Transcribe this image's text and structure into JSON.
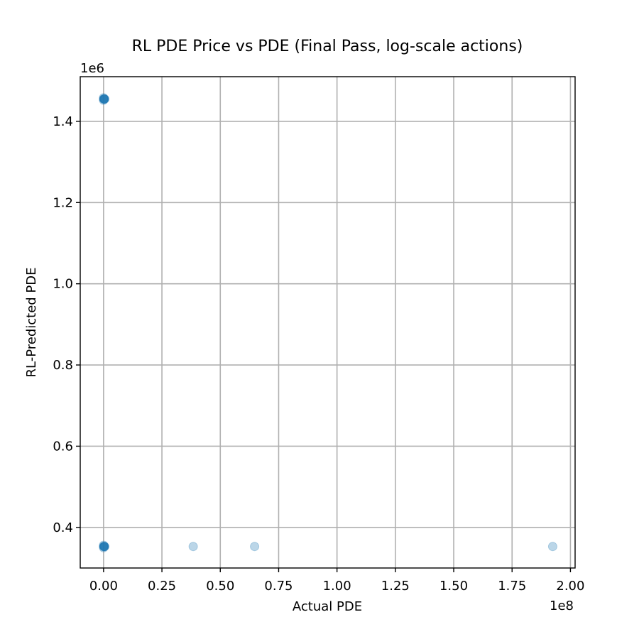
{
  "chart_data": {
    "type": "scatter",
    "title": "RL PDE Price vs PDE (Final Pass, log-scale actions)",
    "xlabel": "Actual PDE",
    "ylabel": "RL-Predicted PDE",
    "x_offset_label": "1e8",
    "y_offset_label": "1e6",
    "x_scale": 100000000,
    "y_scale": 1000000,
    "xlim": [
      -10000000,
      202000000
    ],
    "ylim": [
      300000,
      1510000
    ],
    "x_ticks": [
      0,
      25000000,
      50000000,
      75000000,
      100000000,
      125000000,
      150000000,
      175000000,
      200000000
    ],
    "x_tick_labels": [
      "0.00",
      "0.25",
      "0.50",
      "0.75",
      "1.00",
      "1.25",
      "1.50",
      "1.75",
      "2.00"
    ],
    "y_ticks": [
      400000,
      600000,
      800000,
      1000000,
      1200000,
      1400000
    ],
    "y_tick_labels": [
      "0.4",
      "0.6",
      "0.8",
      "1.0",
      "1.2",
      "1.4"
    ],
    "grid": true,
    "point_color": "#1f77b4",
    "point_alpha": 0.3,
    "series": [
      {
        "points": [
          {
            "x": 0,
            "y": 1455000
          },
          {
            "x": 100000,
            "y": 1455000
          },
          {
            "x": 200000,
            "y": 1455000
          },
          {
            "x": 300000,
            "y": 1455000
          },
          {
            "x": 400000,
            "y": 1455000
          },
          {
            "x": 500000,
            "y": 1455000
          },
          {
            "x": 0,
            "y": 1458000
          },
          {
            "x": 0,
            "y": 1452000
          },
          {
            "x": 0,
            "y": 353000
          },
          {
            "x": 100000,
            "y": 353000
          },
          {
            "x": 200000,
            "y": 353000
          },
          {
            "x": 300000,
            "y": 353000
          },
          {
            "x": 400000,
            "y": 353000
          },
          {
            "x": 500000,
            "y": 353000
          },
          {
            "x": 0,
            "y": 356000
          },
          {
            "x": 0,
            "y": 350000
          },
          {
            "x": 38400000,
            "y": 353000
          },
          {
            "x": 64700000,
            "y": 353000
          },
          {
            "x": 192400000,
            "y": 353000
          }
        ]
      }
    ]
  }
}
